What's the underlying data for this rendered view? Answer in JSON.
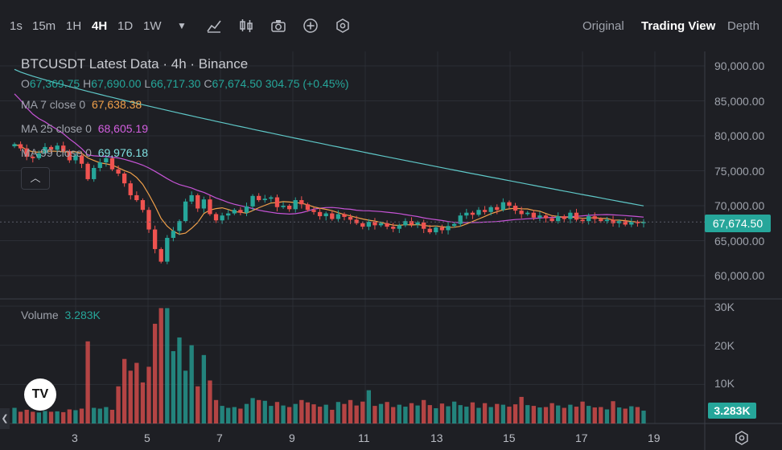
{
  "toolbar": {
    "timeframes": [
      "1s",
      "15m",
      "1H",
      "4H",
      "1D",
      "1W"
    ],
    "active_timeframe": "4H",
    "dropdown_icon": "caret-down-icon",
    "tools": [
      "indicator-icon",
      "candle-style-icon",
      "camera-icon",
      "add-icon",
      "settings-hex-icon"
    ],
    "views": [
      "Original",
      "Trading View",
      "Depth"
    ],
    "active_view": "Trading View"
  },
  "legend": {
    "title": "BTCUSDT Latest Data · 4h · Binance",
    "o_label": "O",
    "o": "67,369.75",
    "h_label": "H",
    "h": "67,690.00",
    "l_label": "L",
    "l": "66,717.30",
    "c_label": "C",
    "c": "67,674.50",
    "change": "304.75 (+0.45%)",
    "ma7_label": "MA 7 close 0",
    "ma7": "67,638.38",
    "ma25_label": "MA 25 close 0",
    "ma25": "68,605.19",
    "ma99_label": "MA 99 close 0",
    "ma99": "69,976.18",
    "volume_label": "Volume",
    "volume": "3.283K"
  },
  "price_axis": [
    "90,000.00",
    "85,000.00",
    "80,000.00",
    "75,000.00",
    "70,000.00",
    "65,000.00",
    "60,000.00"
  ],
  "volume_axis": [
    "30K",
    "20K",
    "10K"
  ],
  "time_axis": [
    "3",
    "5",
    "7",
    "9",
    "11",
    "13",
    "15",
    "17",
    "19"
  ],
  "last_price": "67,674.50",
  "last_volume": "3.283K",
  "logo_text": "TV",
  "colors": {
    "up": "#26a69a",
    "down": "#ef5350",
    "ma7": "#f0a04a",
    "ma25": "#c654d6",
    "ma99": "#5fc8c8",
    "background": "#1e1f24"
  },
  "chart_data": {
    "type": "candlestick",
    "title": "BTCUSDT Latest Data · 4h · Binance",
    "x_ticks": [
      "3",
      "5",
      "7",
      "9",
      "11",
      "13",
      "15",
      "17",
      "19"
    ],
    "y_range": [
      57500,
      92000
    ],
    "volume_range": [
      0,
      32000
    ],
    "closes": [
      78800,
      78200,
      77000,
      76800,
      77500,
      78400,
      78000,
      78600,
      77800,
      76500,
      77200,
      76000,
      73800,
      75400,
      76200,
      76800,
      75200,
      74600,
      73200,
      71500,
      70800,
      69400,
      66600,
      63800,
      62000,
      65400,
      66400,
      67800,
      70600,
      71500,
      69600,
      70900,
      68800,
      67900,
      68600,
      68900,
      69400,
      69000,
      69900,
      71400,
      70800,
      71000,
      71200,
      69800,
      70000,
      69500,
      70800,
      70200,
      69400,
      69100,
      68500,
      68900,
      68100,
      68800,
      68400,
      68000,
      67500,
      67000,
      67700,
      67200,
      67500,
      67000,
      66700,
      67200,
      67800,
      67300,
      67600,
      66700,
      66200,
      66900,
      66500,
      67100,
      67400,
      68600,
      69000,
      68700,
      69400,
      69100,
      69800,
      69400,
      70500,
      70000,
      69300,
      68800,
      69000,
      68300,
      68600,
      68200,
      67800,
      68500,
      68100,
      69000,
      68000,
      67800,
      68500,
      68100,
      67800,
      68000,
      67500,
      67800,
      67300,
      67700,
      67500,
      67674.5
    ],
    "volumes": [
      4000,
      3000,
      3500,
      3000,
      2800,
      3200,
      3000,
      3100,
      2900,
      3600,
      3400,
      3800,
      21000,
      4000,
      3800,
      4200,
      3500,
      9500,
      16500,
      13500,
      15500,
      10500,
      14500,
      25500,
      29500,
      29500,
      18500,
      22000,
      13500,
      20000,
      9500,
      17500,
      11000,
      6000,
      4500,
      4000,
      4200,
      3800,
      5000,
      6500,
      6000,
      5800,
      4500,
      5500,
      4600,
      4200,
      5000,
      6000,
      5400,
      4900,
      4300,
      4800,
      3500,
      5500,
      5000,
      6000,
      4600,
      5600,
      8500,
      4500,
      5000,
      5500,
      4200,
      4800,
      4300,
      5200,
      4600,
      6000,
      4700,
      3900,
      5100,
      4400,
      5600,
      4700,
      4300,
      5400,
      4000,
      5200,
      4200,
      5000,
      4800,
      4300,
      4900,
      6800,
      4700,
      4500,
      4100,
      4200,
      5200,
      4600,
      4000,
      4800,
      4300,
      5600,
      4500,
      4100,
      4200,
      3600,
      5700,
      4100,
      3800,
      4400,
      4200,
      3283
    ]
  }
}
